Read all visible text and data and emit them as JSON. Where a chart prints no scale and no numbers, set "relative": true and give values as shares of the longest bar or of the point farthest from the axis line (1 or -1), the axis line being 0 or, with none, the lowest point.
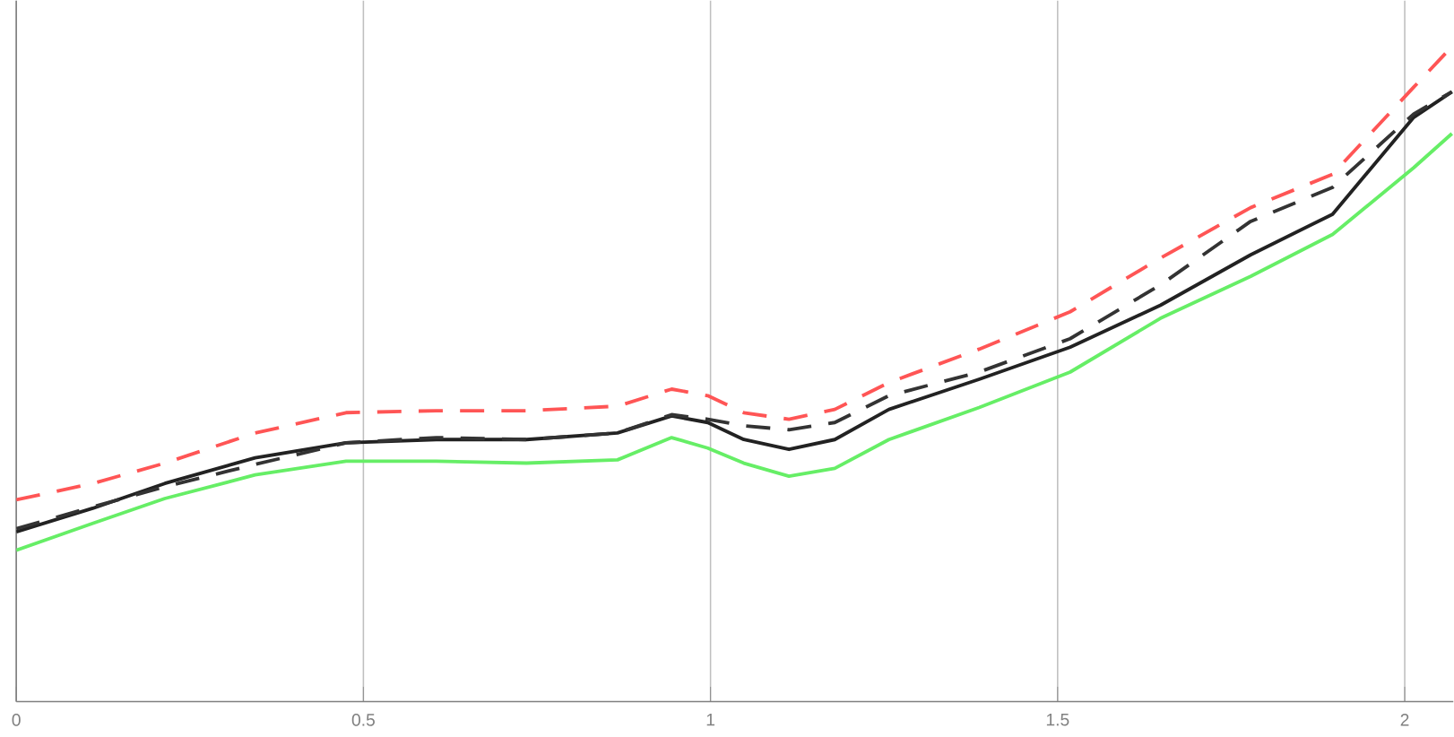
{
  "chart_data": {
    "type": "line",
    "relative": true,
    "x": [
      0,
      0.11,
      0.214,
      0.344,
      0.475,
      0.605,
      0.735,
      0.866,
      0.944,
      0.996,
      1.048,
      1.113,
      1.179,
      1.257,
      1.387,
      1.518,
      1.648,
      1.778,
      1.896,
      2.013,
      2.068
    ],
    "xlim": [
      0,
      2.07
    ],
    "xticks": [
      0,
      0.5,
      1,
      1.5,
      2
    ],
    "grid": "x",
    "marker": "none",
    "series": [
      {
        "color": "#222222",
        "line_style": "solid",
        "values": [
          0.259,
          0.295,
          0.333,
          0.372,
          0.395,
          0.4,
          0.4,
          0.41,
          0.436,
          0.426,
          0.4,
          0.385,
          0.4,
          0.446,
          0.492,
          0.541,
          0.605,
          0.682,
          0.744,
          0.892,
          0.931
        ]
      },
      {
        "color": "#66ee66",
        "line_style": "solid",
        "values": [
          0.231,
          0.272,
          0.31,
          0.346,
          0.367,
          0.367,
          0.364,
          0.369,
          0.403,
          0.387,
          0.364,
          0.344,
          0.356,
          0.4,
          0.449,
          0.503,
          0.585,
          0.649,
          0.713,
          0.815,
          0.867
        ]
      },
      {
        "color": "#333333",
        "line_style": "dashed",
        "values": [
          0.264,
          0.297,
          0.328,
          0.362,
          0.395,
          0.403,
          0.4,
          0.41,
          0.438,
          0.431,
          0.421,
          0.415,
          0.426,
          0.467,
          0.503,
          0.554,
          0.636,
          0.733,
          0.785,
          0.897,
          0.931
        ]
      },
      {
        "color": "#ff5555",
        "line_style": "dashed",
        "values": [
          0.308,
          0.333,
          0.364,
          0.41,
          0.441,
          0.444,
          0.444,
          0.451,
          0.477,
          0.467,
          0.441,
          0.431,
          0.446,
          0.487,
          0.538,
          0.595,
          0.677,
          0.754,
          0.805,
          0.938,
          1
        ]
      }
    ]
  }
}
